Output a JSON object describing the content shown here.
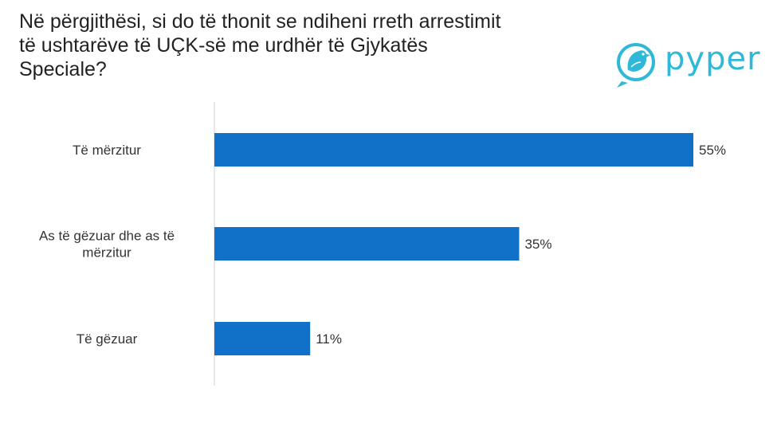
{
  "chart_data": {
    "type": "bar",
    "orientation": "horizontal",
    "title": "Në përgjithësi, si do të thonit se ndiheni rreth arrestimit\ntë ushtarëve të UÇK-së me urdhër të Gjykatës\nSpeciale?",
    "categories": [
      [
        "Të mërzitur"
      ],
      [
        "As të gëzuar dhe as të",
        "mërzitur"
      ],
      [
        "Të gëzuar"
      ]
    ],
    "values": [
      55,
      35,
      11
    ],
    "value_labels": [
      "55%",
      "35%",
      "11%"
    ],
    "xlim": [
      0,
      55
    ],
    "grid": false,
    "legend": "none",
    "bar_color": "#1170c8",
    "axis_color": "#d0d0d0"
  },
  "brand": {
    "name": "pyper",
    "color": "#2fb8d8",
    "icon": "bird-icon"
  }
}
